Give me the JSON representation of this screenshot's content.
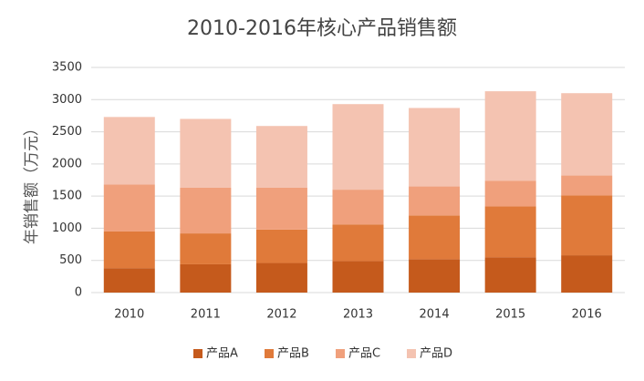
{
  "chart_data": {
    "type": "stacked_bar",
    "title": "2010-2016年核心产品销售额",
    "y_label": "年销售额（万元）",
    "categories": [
      "2010",
      "2011",
      "2012",
      "2013",
      "2014",
      "2015",
      "2016"
    ],
    "series": [
      {
        "name": "产品A",
        "color": "#c55a1c",
        "values": [
          380,
          440,
          460,
          490,
          520,
          550,
          580
        ]
      },
      {
        "name": "产品B",
        "color": "#e07a3a",
        "values": [
          570,
          480,
          520,
          570,
          680,
          790,
          930
        ]
      },
      {
        "name": "产品C",
        "color": "#f0a07c",
        "values": [
          730,
          710,
          650,
          540,
          450,
          400,
          310
        ]
      },
      {
        "name": "产品D",
        "color": "#f4c3b1",
        "values": [
          1050,
          1070,
          960,
          1330,
          1220,
          1390,
          1280
        ]
      }
    ],
    "ylim": [
      0,
      3500
    ],
    "yticks": [
      0,
      500,
      1000,
      1500,
      2000,
      2500,
      3000,
      3500
    ],
    "grid": true,
    "legend": "bottom"
  }
}
